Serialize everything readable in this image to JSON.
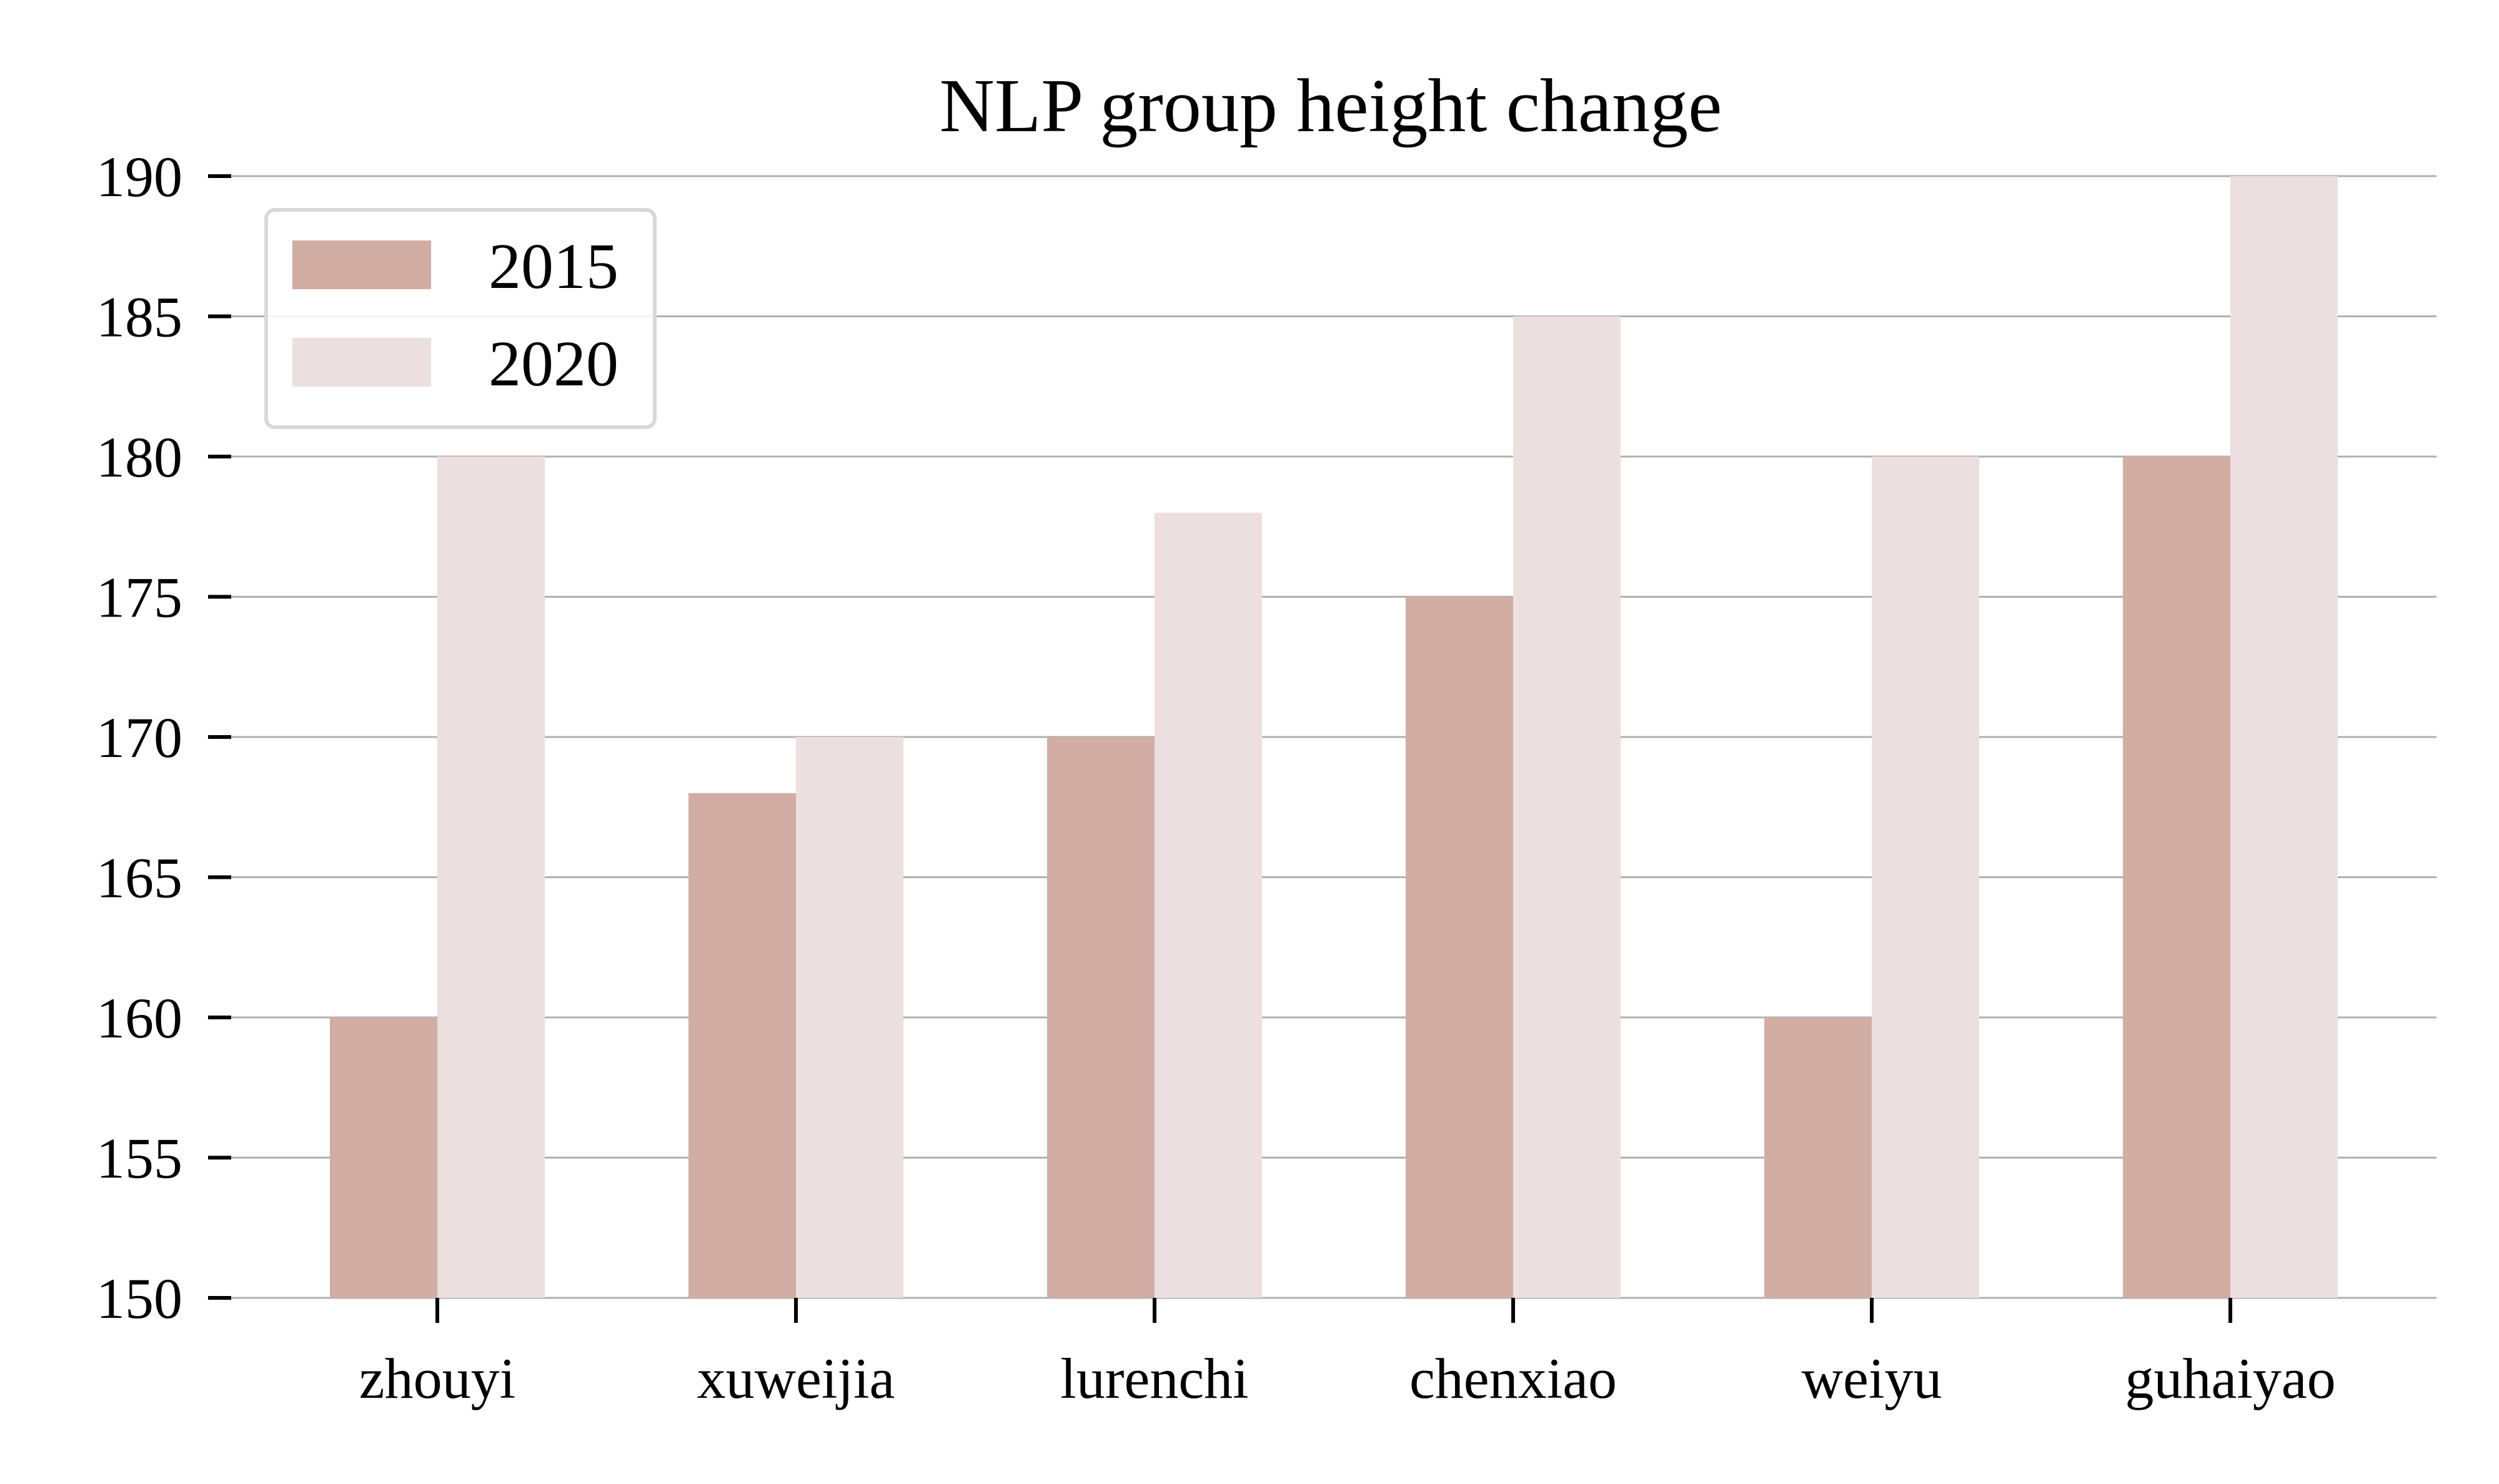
{
  "chart_data": {
    "type": "bar",
    "title": "NLP group height change",
    "xlabel": "",
    "ylabel": "",
    "categories": [
      "zhouyi",
      "xuweijia",
      "lurenchi",
      "chenxiao",
      "weiyu",
      "guhaiyao"
    ],
    "series": [
      {
        "name": "2015",
        "values": [
          160,
          168,
          170,
          175,
          160,
          180
        ],
        "color": "#d2ada4"
      },
      {
        "name": "2020",
        "values": [
          180,
          170,
          178,
          185,
          180,
          190
        ],
        "color": "#ebdfdf"
      }
    ],
    "ylim": [
      150,
      190
    ],
    "yticks": [
      150,
      155,
      160,
      165,
      170,
      175,
      180,
      185,
      190
    ],
    "grid": "horizontal",
    "grid_color": "#b0b0b0",
    "legend_position": "top-left"
  }
}
